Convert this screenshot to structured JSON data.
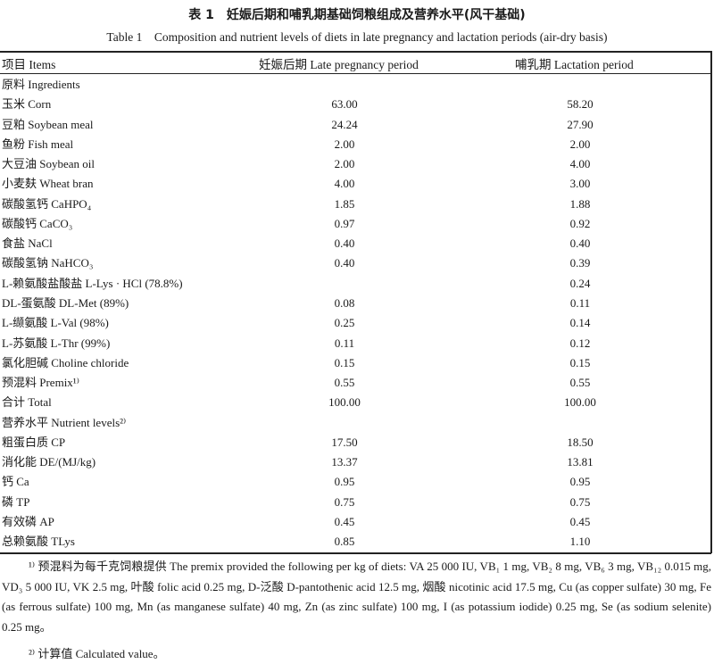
{
  "title_cn": "表 1　妊娠后期和哺乳期基础饲粮组成及营养水平(风干基础)",
  "title_en": "Table 1　Composition and nutrient levels of diets in late pregnancy and lactation periods (air-dry basis)",
  "headers": [
    "项目 Items",
    "妊娠后期 Late pregnancy period",
    "哺乳期 Lactation period"
  ],
  "rows": [
    {
      "label": "原料 Ingredients",
      "late": "",
      "lact": ""
    },
    {
      "label": "玉米 Corn",
      "late": "63.00",
      "lact": "58.20"
    },
    {
      "label": "豆粕 Soybean meal",
      "late": "24.24",
      "lact": "27.90"
    },
    {
      "label": "鱼粉 Fish meal",
      "late": "2.00",
      "lact": "2.00"
    },
    {
      "label": "大豆油 Soybean oil",
      "late": "2.00",
      "lact": "4.00"
    },
    {
      "label": "小麦麸 Wheat bran",
      "late": "4.00",
      "lact": "3.00"
    },
    {
      "label": "碳酸氢钙 CaHPO₄",
      "late": "1.85",
      "lact": "1.88"
    },
    {
      "label": "碳酸钙 CaCO₃",
      "late": "0.97",
      "lact": "0.92"
    },
    {
      "label": "食盐 NaCl",
      "late": "0.40",
      "lact": "0.40"
    },
    {
      "label": "碳酸氢钠 NaHCO₃",
      "late": "0.40",
      "lact": "0.39"
    },
    {
      "label": "L-赖氨酸盐酸盐 L-Lys · HCl (78.8%)",
      "late": "",
      "lact": "0.24"
    },
    {
      "label": "DL-蛋氨酸 DL-Met (89%)",
      "late": "0.08",
      "lact": "0.11"
    },
    {
      "label": "L-缬氨酸 L-Val (98%)",
      "late": "0.25",
      "lact": "0.14"
    },
    {
      "label": "L-苏氨酸 L-Thr (99%)",
      "late": "0.11",
      "lact": "0.12"
    },
    {
      "label": "氯化胆碱 Choline chloride",
      "late": "0.15",
      "lact": "0.15"
    },
    {
      "label": "预混料 Premix¹⁾",
      "late": "0.55",
      "lact": "0.55"
    },
    {
      "label": "合计 Total",
      "late": "100.00",
      "lact": "100.00"
    },
    {
      "label": "营养水平 Nutrient levels²⁾",
      "late": "",
      "lact": ""
    },
    {
      "label": "粗蛋白质 CP",
      "late": "17.50",
      "lact": "18.50"
    },
    {
      "label": "消化能 DE/(MJ/kg)",
      "late": "13.37",
      "lact": "13.81"
    },
    {
      "label": "钙 Ca",
      "late": "0.95",
      "lact": "0.95"
    },
    {
      "label": "磷 TP",
      "late": "0.75",
      "lact": "0.75"
    },
    {
      "label": "有效磷 AP",
      "late": "0.45",
      "lact": "0.45"
    },
    {
      "label": "总赖氨酸 TLys",
      "late": "0.85",
      "lact": "1.10"
    }
  ],
  "notes": {
    "note1": "¹⁾ 预混料为每千克饲粮提供 The premix provided the following per kg of diets: VA 25 000 IU, VB₁ 1 mg, VB₂ 8 mg, VB₆ 3 mg, VB₁₂ 0.015 mg, VD₃ 5 000 IU, VK 2.5 mg, 叶酸 folic acid 0.25 mg, D-泛酸 D-pantothenic acid 12.5 mg, 烟酸 nicotinic acid 17.5 mg, Cu (as copper sulfate) 30 mg, Fe (as ferrous sulfate) 100 mg, Mn (as manganese sulfate) 40 mg, Zn (as zinc sulfate) 100 mg, I (as potassium iodide) 0.25 mg, Se (as sodium selenite) 0.25 mg。",
    "note2": "²⁾ 计算值 Calculated value。"
  }
}
